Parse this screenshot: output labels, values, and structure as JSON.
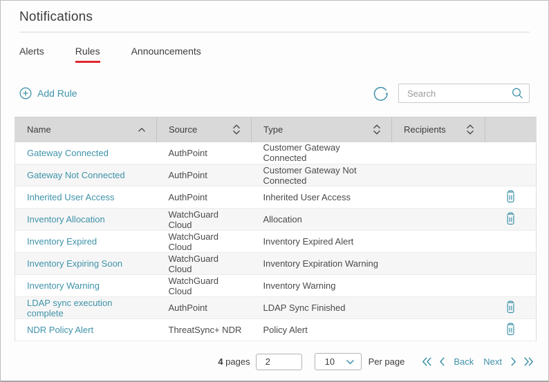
{
  "page": {
    "title": "Notifications"
  },
  "tabs": [
    {
      "label": "Alerts",
      "active": false
    },
    {
      "label": "Rules",
      "active": true
    },
    {
      "label": "Announcements",
      "active": false
    }
  ],
  "toolbar": {
    "add_rule_label": "Add Rule",
    "search_placeholder": "Search",
    "icons": {
      "add": "plus-circle-icon",
      "refresh": "refresh-icon",
      "search": "search-icon"
    }
  },
  "table": {
    "columns": [
      {
        "label": "Name",
        "sort": "asc"
      },
      {
        "label": "Source",
        "sort": "both"
      },
      {
        "label": "Type",
        "sort": "both"
      },
      {
        "label": "Recipients",
        "sort": "both"
      },
      {
        "label": "",
        "sort": "none"
      }
    ],
    "rows": [
      {
        "name": "Gateway Connected",
        "source": "AuthPoint",
        "type": "Customer Gateway Connected",
        "recipients": "",
        "deletable": false
      },
      {
        "name": "Gateway Not Connected",
        "source": "AuthPoint",
        "type": "Customer Gateway Not Connected",
        "recipients": "",
        "deletable": false
      },
      {
        "name": "Inherited User Access",
        "source": "AuthPoint",
        "type": "Inherited User Access",
        "recipients": "",
        "deletable": true
      },
      {
        "name": "Inventory Allocation",
        "source": "WatchGuard Cloud",
        "type": "Allocation",
        "recipients": "",
        "deletable": true
      },
      {
        "name": "Inventory Expired",
        "source": "WatchGuard Cloud",
        "type": "Inventory Expired Alert",
        "recipients": "",
        "deletable": false
      },
      {
        "name": "Inventory Expiring Soon",
        "source": "WatchGuard Cloud",
        "type": "Inventory Expiration Warning",
        "recipients": "",
        "deletable": false
      },
      {
        "name": "Inventory Warning",
        "source": "WatchGuard Cloud",
        "type": "Inventory Warning",
        "recipients": "",
        "deletable": false
      },
      {
        "name": "LDAP sync execution complete",
        "source": "AuthPoint",
        "type": "LDAP Sync Finished",
        "recipients": "",
        "deletable": true
      },
      {
        "name": "NDR Policy Alert",
        "source": "ThreatSync+ NDR",
        "type": "Policy Alert",
        "recipients": "",
        "deletable": true
      }
    ]
  },
  "pagination": {
    "pages_count": "4",
    "pages_label": "pages",
    "current_page": "2",
    "per_page_value": "10",
    "per_page_label": "Per page",
    "back_label": "Back",
    "next_label": "Next"
  },
  "colors": {
    "accent_teal": "#3e92a9",
    "active_tab_underline": "#e2262f",
    "header_bg": "#d9d9d9",
    "row_alt_bg": "#f6f6f6",
    "text_dark": "#3c3c3c"
  }
}
